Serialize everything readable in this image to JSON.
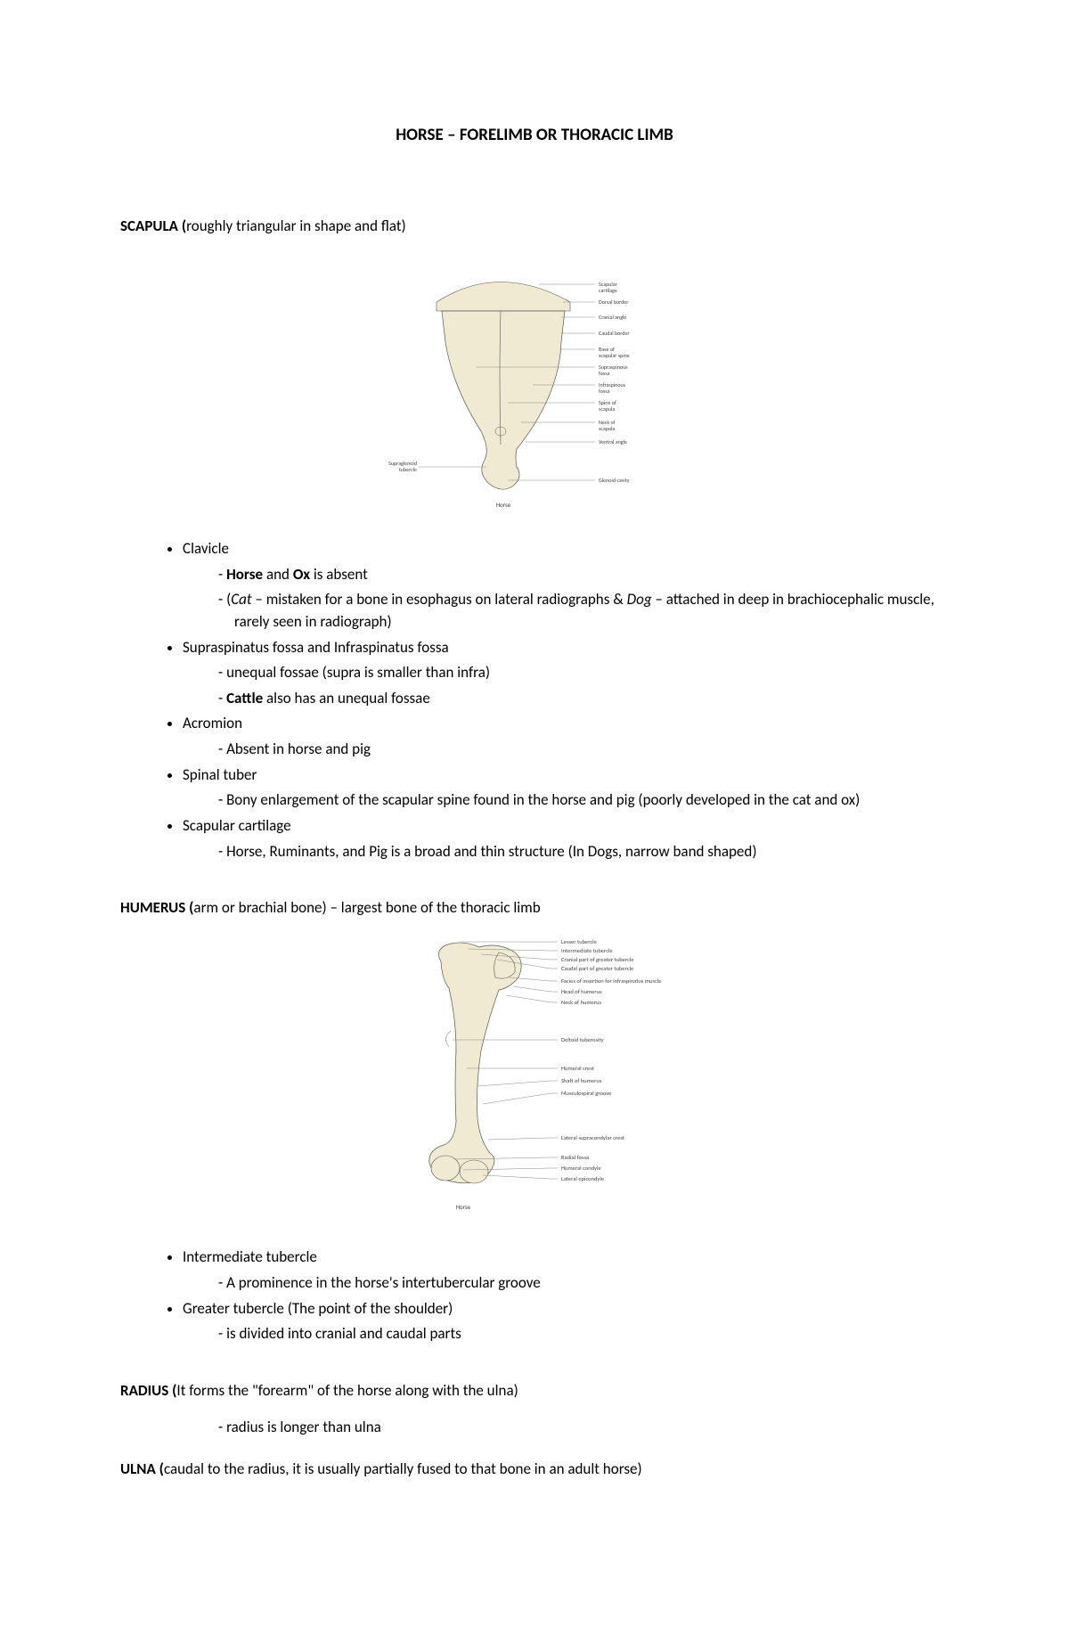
{
  "title": "HORSE – FORELIMB OR THORACIC LIMB",
  "scapula": {
    "heading_bold": "SCAPULA (",
    "heading_rest": "roughly triangular in shape and flat)",
    "diagram": {
      "bone_fill": "#f0ead2",
      "bone_stroke": "#555",
      "label_color": "#444",
      "line_color": "#888",
      "footer": "Horse",
      "left_label": "Supraglenoid tubercle",
      "labels_right": [
        "Scapular cartilage",
        "Dorsal border",
        "Cranial angle",
        "Caudal border",
        "Base of scapular spine",
        "Supraspinous fossa",
        "Infraspinous fossa",
        "Spine of scapula",
        "Neck of scapula",
        "Ventral angle",
        "Glenoid cavity"
      ]
    },
    "items": [
      {
        "label": "Clavicle",
        "subs": [
          {
            "parts": [
              {
                "t": "Horse",
                "c": "b"
              },
              {
                "t": " and "
              },
              {
                "t": "Ox",
                "c": "b"
              },
              {
                "t": " is absent"
              }
            ]
          },
          {
            "parts": [
              {
                "t": "("
              },
              {
                "t": "Cat",
                "c": "i"
              },
              {
                "t": " – mistaken for a bone in esophagus on lateral radiographs & "
              },
              {
                "t": "Dog",
                "c": "i"
              },
              {
                "t": " – attached in deep in brachiocephalic muscle, rarely seen in radiograph)"
              }
            ]
          }
        ]
      },
      {
        "label": "Supraspinatus fossa and Infraspinatus fossa",
        "subs": [
          {
            "parts": [
              {
                "t": "unequal fossae (supra is smaller than infra)"
              }
            ]
          },
          {
            "parts": [
              {
                "t": "Cattle",
                "c": "b"
              },
              {
                "t": " also has an unequal fossae"
              }
            ]
          }
        ]
      },
      {
        "label": "Acromion",
        "subs": [
          {
            "parts": [
              {
                "t": "Absent in horse and pig"
              }
            ]
          }
        ]
      },
      {
        "label": "Spinal tuber",
        "subs": [
          {
            "parts": [
              {
                "t": "Bony enlargement of the scapular spine found in the horse and pig (poorly developed in the cat and ox)"
              }
            ]
          }
        ]
      },
      {
        "label": "Scapular cartilage",
        "subs": [
          {
            "parts": [
              {
                "t": "Horse, Ruminants, and Pig is a broad and thin structure (In Dogs, narrow band shaped)"
              }
            ]
          }
        ]
      }
    ]
  },
  "humerus": {
    "heading_bold": "HUMERUS (",
    "heading_rest": "arm or brachial bone) – largest bone of the thoracic limb",
    "diagram": {
      "bone_fill": "#f0ead2",
      "bone_stroke": "#555",
      "label_color": "#444",
      "line_color": "#888",
      "footer": "Horse",
      "labels_right": [
        "Lesser tubercle",
        "Intermediate tubercle",
        "Cranial part of greater tubercle",
        "Caudal part of greater tubercle",
        "Facies of insertion for infraspinatus muscle",
        "Head of humerus",
        "Neck of humerus",
        "Deltoid tuberosity",
        "Humeral crest",
        "Shaft of humerus",
        "Musculospiral groove",
        "Lateral supracondylar crest",
        "Radial fossa",
        "Humeral condyle",
        "Lateral epicondyle"
      ]
    },
    "items": [
      {
        "label": "Intermediate tubercle",
        "subs": [
          {
            "parts": [
              {
                "t": "A prominence in the horse's intertubercular groove"
              }
            ]
          }
        ]
      },
      {
        "label": "Greater tubercle (The point of the shoulder)",
        "subs": [
          {
            "parts": [
              {
                "t": "is divided into cranial and caudal parts"
              }
            ]
          }
        ]
      }
    ]
  },
  "radius": {
    "heading_bold": "RADIUS (",
    "heading_rest": "It forms the \"forearm\" of the horse along with the ulna)",
    "sub": "radius is longer than ulna"
  },
  "ulna": {
    "heading_bold": "ULNA (",
    "heading_rest": "caudal to the radius, it is usually partially fused to that bone in an adult horse)"
  }
}
